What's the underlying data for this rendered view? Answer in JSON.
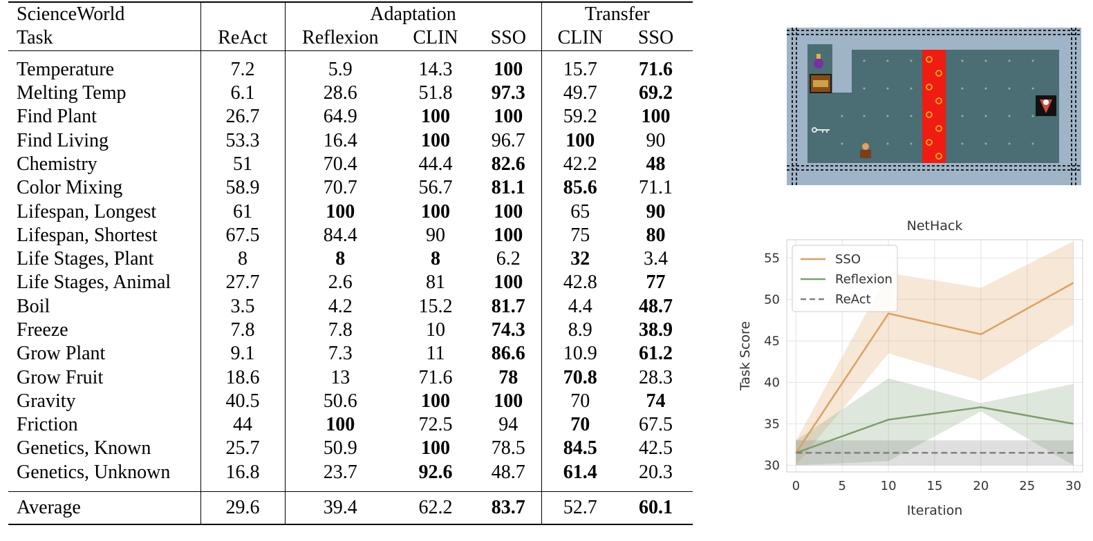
{
  "table": {
    "header": {
      "task_line1": "ScienceWorld",
      "task_line2": "Task",
      "react": "ReAct",
      "adaptation": "Adaptation",
      "transfer": "Transfer",
      "reflexion": "Reflexion",
      "clin_adapt": "CLIN",
      "sso_adapt": "SSO",
      "clin_transfer": "CLIN",
      "sso_transfer": "SSO"
    },
    "rows": [
      {
        "task": "Temperature",
        "values": [
          "7.2",
          "5.9",
          "14.3",
          "100",
          "15.7",
          "71.6"
        ],
        "bold": [
          false,
          false,
          false,
          true,
          false,
          true
        ]
      },
      {
        "task": "Melting Temp",
        "values": [
          "6.1",
          "28.6",
          "51.8",
          "97.3",
          "49.7",
          "69.2"
        ],
        "bold": [
          false,
          false,
          false,
          true,
          false,
          true
        ]
      },
      {
        "task": "Find Plant",
        "values": [
          "26.7",
          "64.9",
          "100",
          "100",
          "59.2",
          "100"
        ],
        "bold": [
          false,
          false,
          true,
          true,
          false,
          true
        ]
      },
      {
        "task": "Find Living",
        "values": [
          "53.3",
          "16.4",
          "100",
          "96.7",
          "100",
          "90"
        ],
        "bold": [
          false,
          false,
          true,
          false,
          true,
          false
        ]
      },
      {
        "task": "Chemistry",
        "values": [
          "51",
          "70.4",
          "44.4",
          "82.6",
          "42.2",
          "48"
        ],
        "bold": [
          false,
          false,
          false,
          true,
          false,
          true
        ]
      },
      {
        "task": "Color Mixing",
        "values": [
          "58.9",
          "70.7",
          "56.7",
          "81.1",
          "85.6",
          "71.1"
        ],
        "bold": [
          false,
          false,
          false,
          true,
          true,
          false
        ]
      },
      {
        "task": "Lifespan, Longest",
        "values": [
          "61",
          "100",
          "100",
          "100",
          "65",
          "90"
        ],
        "bold": [
          false,
          true,
          true,
          true,
          false,
          true
        ]
      },
      {
        "task": "Lifespan, Shortest",
        "values": [
          "67.5",
          "84.4",
          "90",
          "100",
          "75",
          "80"
        ],
        "bold": [
          false,
          false,
          false,
          true,
          false,
          true
        ]
      },
      {
        "task": "Life Stages, Plant",
        "values": [
          "8",
          "8",
          "8",
          "6.2",
          "32",
          "3.4"
        ],
        "bold": [
          false,
          true,
          true,
          false,
          true,
          false
        ]
      },
      {
        "task": "Life Stages, Animal",
        "values": [
          "27.7",
          "2.6",
          "81",
          "100",
          "42.8",
          "77"
        ],
        "bold": [
          false,
          false,
          false,
          true,
          false,
          true
        ]
      },
      {
        "task": "Boil",
        "values": [
          "3.5",
          "4.2",
          "15.2",
          "81.7",
          "4.4",
          "48.7"
        ],
        "bold": [
          false,
          false,
          false,
          true,
          false,
          true
        ]
      },
      {
        "task": "Freeze",
        "values": [
          "7.8",
          "7.8",
          "10",
          "74.3",
          "8.9",
          "38.9"
        ],
        "bold": [
          false,
          false,
          false,
          true,
          false,
          true
        ]
      },
      {
        "task": "Grow Plant",
        "values": [
          "9.1",
          "7.3",
          "11",
          "86.6",
          "10.9",
          "61.2"
        ],
        "bold": [
          false,
          false,
          false,
          true,
          false,
          true
        ]
      },
      {
        "task": "Grow Fruit",
        "values": [
          "18.6",
          "13",
          "71.6",
          "78",
          "70.8",
          "28.3"
        ],
        "bold": [
          false,
          false,
          false,
          true,
          true,
          false
        ]
      },
      {
        "task": "Gravity",
        "values": [
          "40.5",
          "50.6",
          "100",
          "100",
          "70",
          "74"
        ],
        "bold": [
          false,
          false,
          true,
          true,
          false,
          true
        ]
      },
      {
        "task": "Friction",
        "values": [
          "44",
          "100",
          "72.5",
          "94",
          "70",
          "67.5"
        ],
        "bold": [
          false,
          true,
          false,
          false,
          true,
          false
        ]
      },
      {
        "task": "Genetics, Known",
        "values": [
          "25.7",
          "50.9",
          "100",
          "78.5",
          "84.5",
          "42.5"
        ],
        "bold": [
          false,
          false,
          true,
          false,
          true,
          false
        ]
      },
      {
        "task": "Genetics, Unknown",
        "values": [
          "16.8",
          "23.7",
          "92.6",
          "48.7",
          "61.4",
          "20.3"
        ],
        "bold": [
          false,
          false,
          true,
          false,
          true,
          false
        ]
      }
    ],
    "average": {
      "task": "Average",
      "values": [
        "29.6",
        "39.4",
        "62.2",
        "83.7",
        "52.7",
        "60.1"
      ],
      "bold": [
        false,
        false,
        false,
        true,
        false,
        true
      ]
    }
  },
  "colors": {
    "sso": "#dda15e",
    "reflexion": "#7d9e6e",
    "react": "#808080",
    "game_floor": "#4a6e73",
    "game_lava": "#ef1c13",
    "game_wall": "#9fb4c6"
  },
  "chart_data": {
    "type": "line",
    "title": "NetHack",
    "xlabel": "Iteration",
    "ylabel": "Task Score",
    "xlim": [
      -1,
      31
    ],
    "ylim": [
      29.2,
      57.2
    ],
    "xticks": [
      0,
      5,
      10,
      15,
      20,
      25,
      30
    ],
    "yticks": [
      30,
      35,
      40,
      45,
      50,
      55
    ],
    "grid": true,
    "legend_position": "top-left",
    "series": [
      {
        "name": "SSO",
        "style": "solid",
        "color_key": "sso",
        "x": [
          0,
          10,
          20,
          30
        ],
        "y": [
          31.5,
          48.3,
          45.8,
          52.0
        ],
        "lower": [
          30.0,
          43.5,
          40.2,
          47.0
        ],
        "upper": [
          33.0,
          53.2,
          51.4,
          57.0
        ]
      },
      {
        "name": "Reflexion",
        "style": "solid",
        "color_key": "reflexion",
        "x": [
          0,
          10,
          20,
          30
        ],
        "y": [
          31.5,
          35.5,
          37.0,
          35.0
        ],
        "lower": [
          30.0,
          30.5,
          36.5,
          30.0
        ],
        "upper": [
          33.0,
          40.5,
          37.5,
          39.8
        ]
      },
      {
        "name": "ReAct",
        "style": "dashed",
        "color_key": "react",
        "x": [
          0,
          30
        ],
        "y": [
          31.5,
          31.5
        ],
        "lower": [
          30.0,
          30.0
        ],
        "upper": [
          33.0,
          33.0
        ]
      }
    ]
  }
}
